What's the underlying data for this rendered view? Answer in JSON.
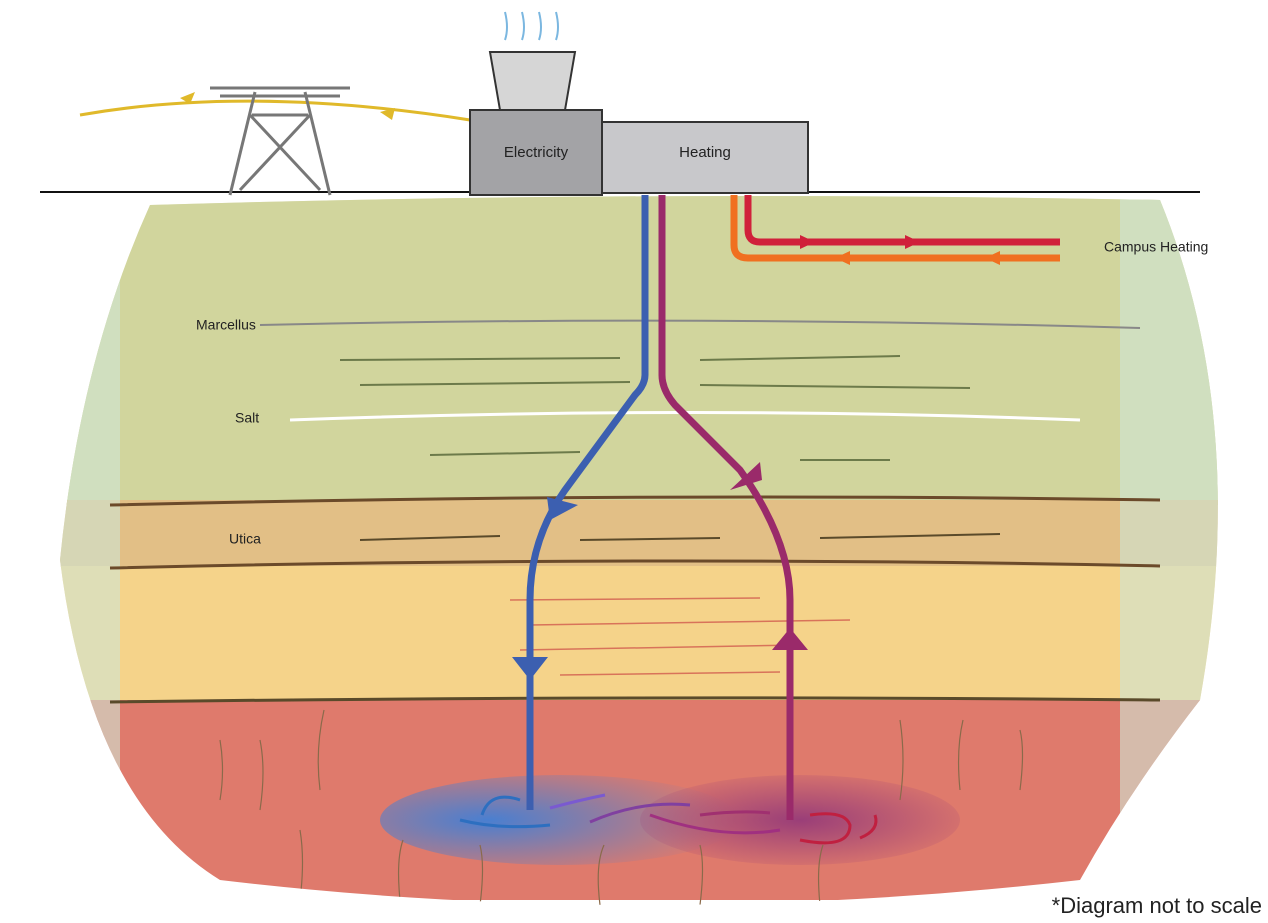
{
  "buildings": {
    "electricity": "Electricity",
    "heating": "Heating"
  },
  "outputs": {
    "campus_heating": "Campus Heating"
  },
  "layers": [
    "Marcellus",
    "Salt",
    "Utica"
  ],
  "note": "*Diagram not to scale"
}
